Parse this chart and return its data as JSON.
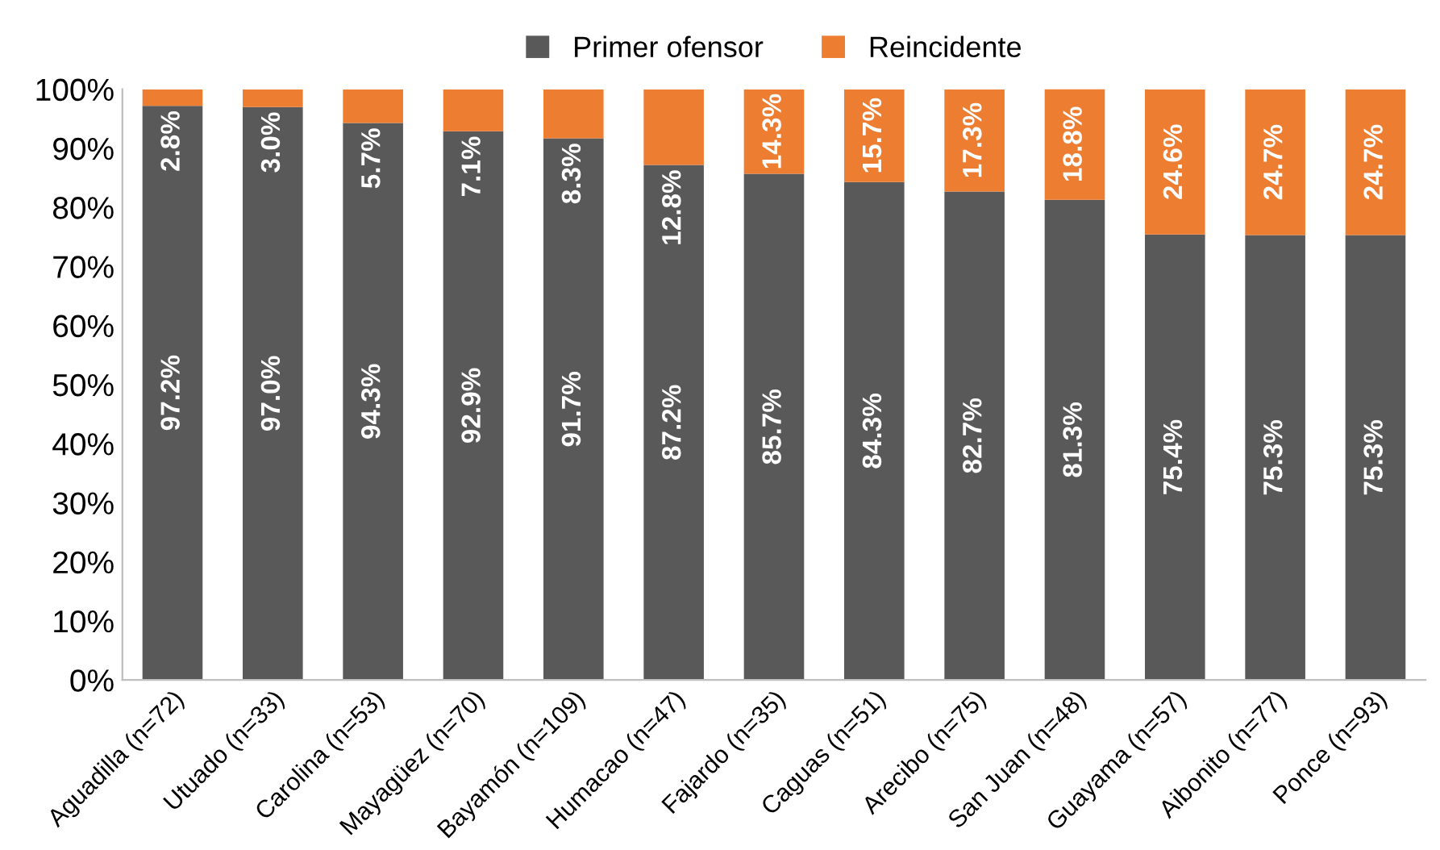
{
  "chart_data": {
    "type": "bar",
    "stacked": true,
    "legend": "top",
    "grid": false,
    "categories": [
      "Aguadilla (n=72)",
      "Utuado (n=33)",
      "Carolina (n=53)",
      "Mayagüez (n=70)",
      "Bayamón (n=109)",
      "Humacao (n=47)",
      "Fajardo (n=35)",
      "Caguas (n=51)",
      "Arecibo (n=75)",
      "San Juan (n=48)",
      "Guayama (n=57)",
      "Aibonito (n=77)",
      "Ponce (n=93)"
    ],
    "series": [
      {
        "name": "Primer ofensor",
        "color": "#595959",
        "values": [
          97.2,
          97.0,
          94.3,
          92.9,
          91.7,
          87.2,
          85.7,
          84.3,
          82.7,
          81.3,
          75.4,
          75.3,
          75.3
        ],
        "value_labels": [
          "97.2%",
          "97.0%",
          "94.3%",
          "92.9%",
          "91.7%",
          "87.2%",
          "85.7%",
          "84.3%",
          "82.7%",
          "81.3%",
          "75.4%",
          "75.3%",
          "75.3%"
        ]
      },
      {
        "name": "Reincidente",
        "color": "#ed7d31",
        "values": [
          2.8,
          3.0,
          5.7,
          7.1,
          8.3,
          12.8,
          14.3,
          15.7,
          17.3,
          18.8,
          24.6,
          24.7,
          24.7
        ],
        "value_labels": [
          "2.8%",
          "3.0%",
          "5.7%",
          "7.1%",
          "8.3%",
          "12.8%",
          "14.3%",
          "15.7%",
          "17.3%",
          "18.8%",
          "24.6%",
          "24.7%",
          "24.7%"
        ]
      }
    ],
    "ylim": [
      0,
      100
    ],
    "yticks": [
      {
        "value": 0,
        "label": "0%"
      },
      {
        "value": 10,
        "label": "10%"
      },
      {
        "value": 20,
        "label": "20%"
      },
      {
        "value": 30,
        "label": "30%"
      },
      {
        "value": 40,
        "label": "40%"
      },
      {
        "value": 50,
        "label": "50%"
      },
      {
        "value": 60,
        "label": "60%"
      },
      {
        "value": 70,
        "label": "70%"
      },
      {
        "value": 80,
        "label": "80%"
      },
      {
        "value": 90,
        "label": "90%"
      },
      {
        "value": 100,
        "label": "100%"
      }
    ]
  }
}
